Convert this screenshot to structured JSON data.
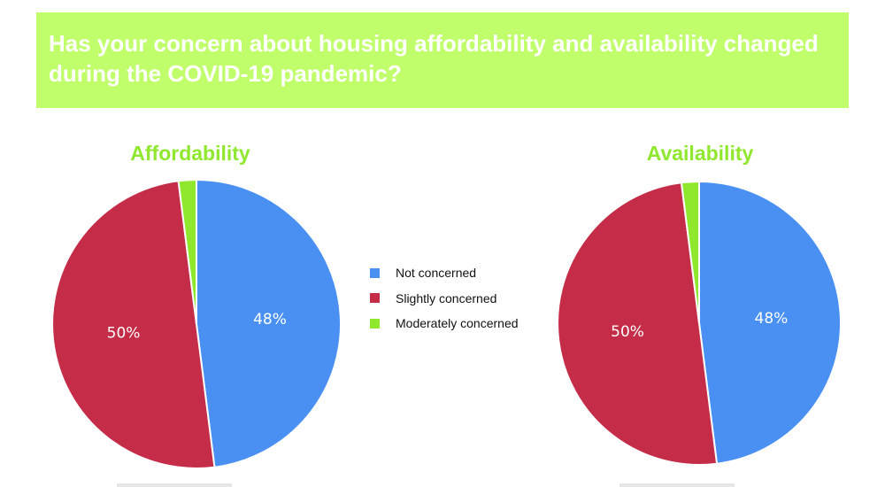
{
  "header": {
    "title": "Has your concern about housing affordability and availability changed during the COVID-19 pandemic?"
  },
  "legend": [
    {
      "label": "Not concerned",
      "color": "#4a90f2"
    },
    {
      "label": "Slightly concerned",
      "color": "#c52c48"
    },
    {
      "label": "Moderately concerned",
      "color": "#90e82e"
    }
  ],
  "chart_data": [
    {
      "type": "pie",
      "title": "Affordability",
      "categories": [
        "Not concerned",
        "Slightly concerned",
        "Moderately concerned"
      ],
      "values": [
        48,
        50,
        2
      ],
      "data_labels": [
        "48%",
        "50%",
        ""
      ],
      "colors": [
        "#4a90f2",
        "#c52c48",
        "#90e82e"
      ]
    },
    {
      "type": "pie",
      "title": "Availability",
      "categories": [
        "Not concerned",
        "Slightly concerned",
        "Moderately concerned"
      ],
      "values": [
        48,
        50,
        2
      ],
      "data_labels": [
        "48%",
        "50%",
        ""
      ],
      "colors": [
        "#4a90f2",
        "#c52c48",
        "#90e82e"
      ]
    }
  ]
}
